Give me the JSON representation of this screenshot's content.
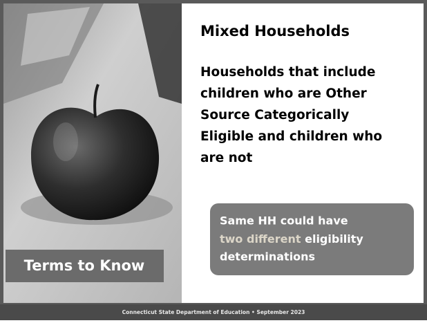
{
  "slide": {
    "title": "Mixed Households",
    "body_lines": [
      "Households that include",
      "children who are Other",
      "Source Categorically",
      "Eligible and children who",
      "are not"
    ],
    "callout": {
      "line1": "Same HH could have",
      "line2_highlight": "two different",
      "line2_rest": " eligibility",
      "line3": "determinations"
    },
    "label": "Terms to Know",
    "footer": "Connecticut State Department of Education • September 2023"
  }
}
